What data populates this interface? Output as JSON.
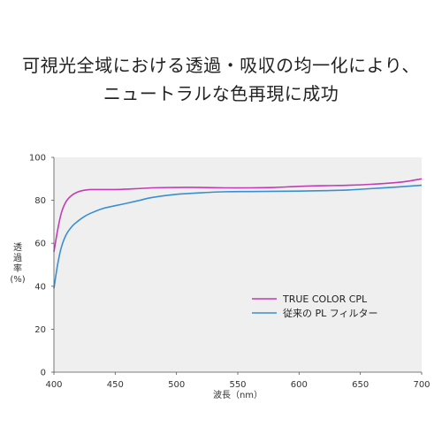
{
  "headline": {
    "line1": "可視光全域における透過・吸収の均一化により、",
    "line2": "ニュートラルな色再現に成功"
  },
  "chart_data": {
    "type": "line",
    "title": "",
    "xlabel": "波長（nm）",
    "ylabel_lines": [
      "透",
      "過",
      "率",
      "(%)"
    ],
    "xlim": [
      400,
      700
    ],
    "ylim": [
      0,
      100
    ],
    "xticks": [
      400,
      450,
      500,
      550,
      600,
      650,
      700
    ],
    "yticks": [
      0,
      20,
      40,
      60,
      80,
      100
    ],
    "grid": false,
    "plot_background": "#efefef",
    "legend_position": "lower-right",
    "series": [
      {
        "name": "TRUE COLOR CPL",
        "color": "#c23cb4",
        "x": [
          400,
          403,
          406,
          410,
          415,
          420,
          425,
          430,
          440,
          450,
          460,
          470,
          480,
          500,
          520,
          540,
          560,
          580,
          600,
          620,
          640,
          660,
          680,
          690,
          700
        ],
        "y": [
          56,
          66,
          74,
          79.5,
          82.5,
          84,
          84.7,
          85,
          85,
          85,
          85.2,
          85.5,
          85.8,
          86,
          86,
          85.8,
          85.8,
          86,
          86.5,
          86.8,
          87,
          87.5,
          88.3,
          89,
          90
        ]
      },
      {
        "name": "従来の PL フィルター",
        "color": "#3a8fd0",
        "x": [
          400,
          403,
          406,
          410,
          415,
          420,
          425,
          430,
          440,
          450,
          460,
          470,
          480,
          500,
          520,
          540,
          560,
          580,
          600,
          620,
          640,
          660,
          680,
          690,
          700
        ],
        "y": [
          39,
          50,
          58,
          64,
          68,
          70.5,
          72.5,
          74,
          76.2,
          77.5,
          78.7,
          80,
          81.3,
          82.8,
          83.5,
          84,
          84.1,
          84.2,
          84.3,
          84.5,
          84.8,
          85.5,
          86.2,
          86.6,
          87
        ]
      }
    ]
  }
}
